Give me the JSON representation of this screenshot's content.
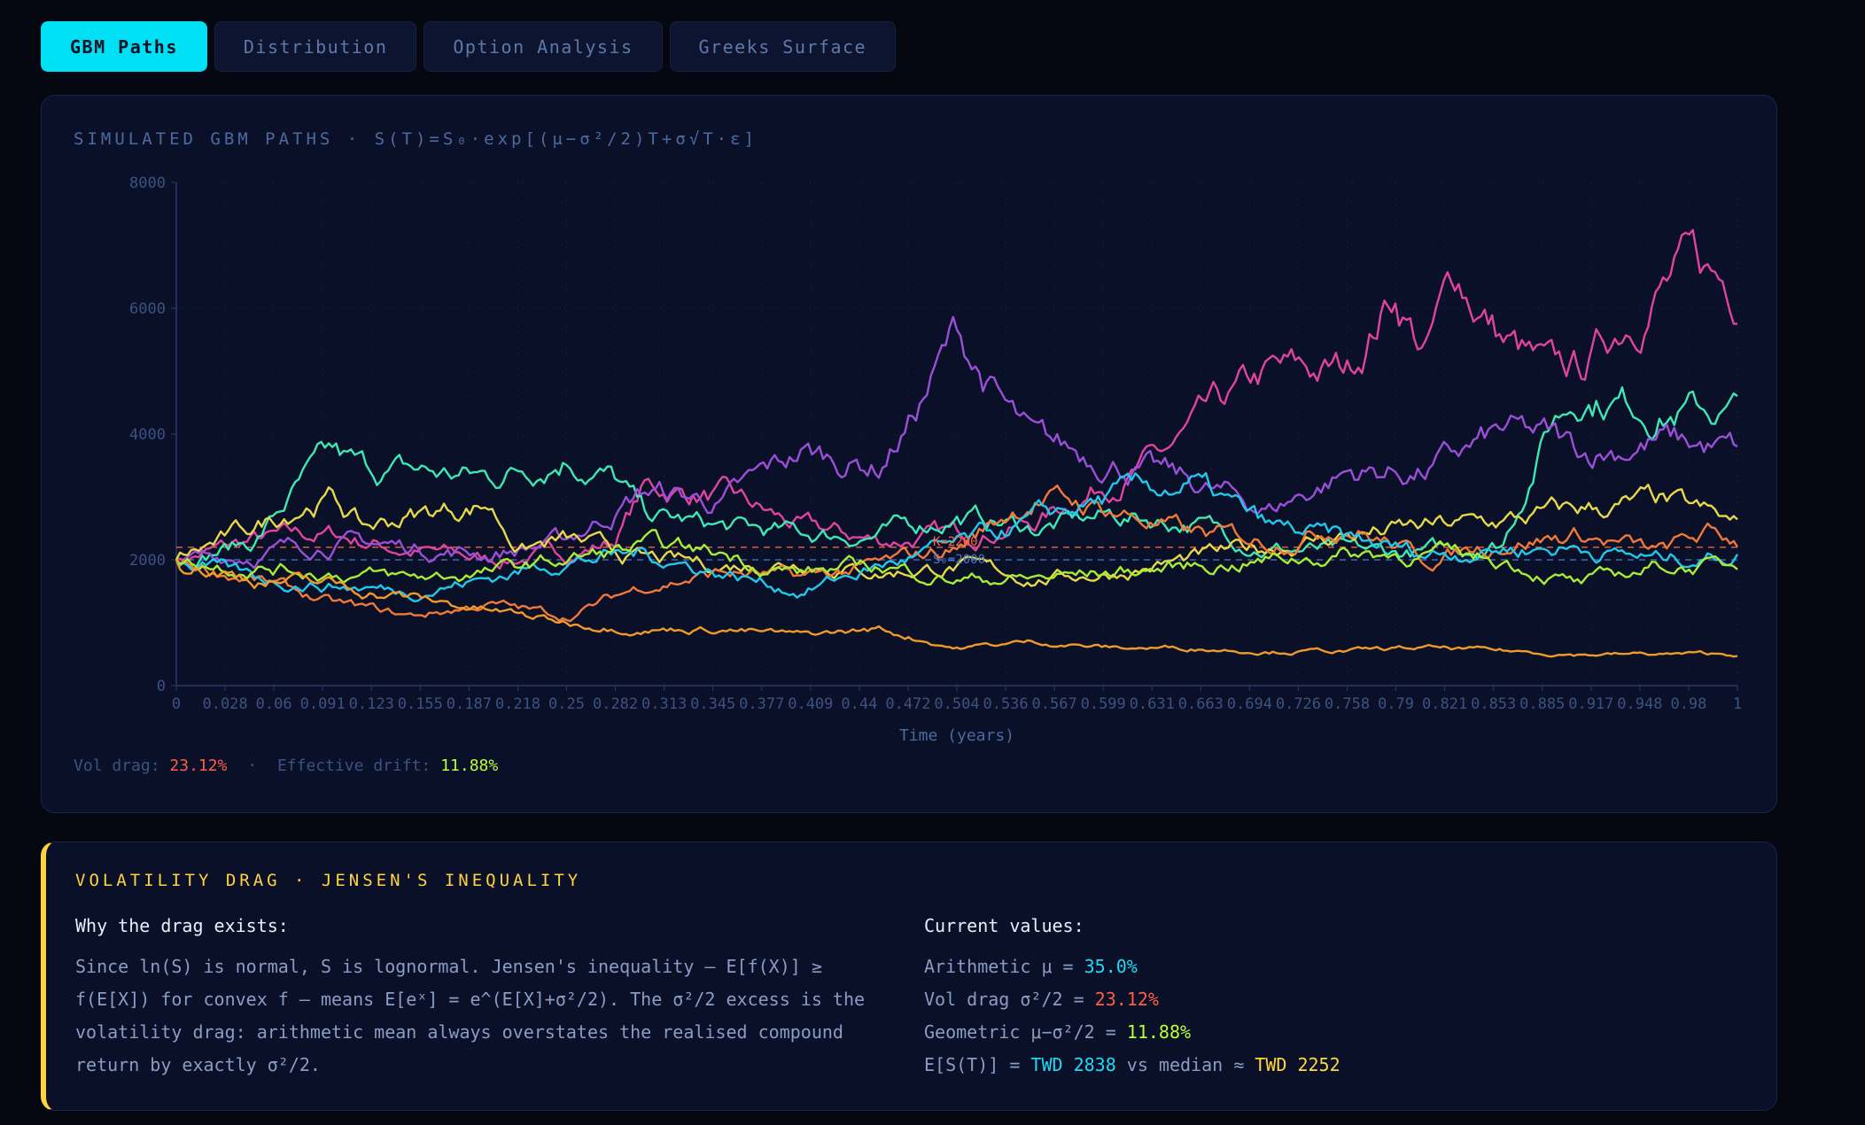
{
  "tabs": [
    {
      "label": "GBM Paths",
      "active": true
    },
    {
      "label": "Distribution"
    },
    {
      "label": "Option Analysis"
    },
    {
      "label": "Greeks Surface"
    }
  ],
  "panel": {
    "title": "SIMULATED GBM PATHS · S(T)=S₀·exp[(μ−σ²/2)T+σ√T·ε]",
    "vol_drag_label": "Vol drag:",
    "vol_drag_value": "23.12%",
    "separator": "·",
    "eff_drift_label": "Effective drift:",
    "eff_drift_value": "11.88%"
  },
  "chart_data": {
    "type": "line",
    "xlabel": "Time (years)",
    "ylabel": "",
    "ylim": [
      0,
      8000
    ],
    "xlim": [
      0,
      1
    ],
    "y_ticks": [
      0,
      2000,
      4000,
      6000,
      8000
    ],
    "x_tick_labels": [
      "0",
      "0.028",
      "0.06",
      "0.091",
      "0.123",
      "0.155",
      "0.187",
      "0.218",
      "0.25",
      "0.282",
      "0.313",
      "0.345",
      "0.377",
      "0.409",
      "0.44",
      "0.472",
      "0.504",
      "0.536",
      "0.567",
      "0.599",
      "0.631",
      "0.663",
      "0.694",
      "0.726",
      "0.758",
      "0.79",
      "0.821",
      "0.853",
      "0.885",
      "0.917",
      "0.948",
      "0.98",
      "1"
    ],
    "grid": true,
    "reference_lines": [
      {
        "label": "K=2200",
        "y": 2200,
        "color": "#ff6a45"
      },
      {
        "label": "S₀=2000",
        "y": 2000,
        "color": "#4a78c8"
      }
    ],
    "series": [
      {
        "color": "#e0449e",
        "x": [
          0,
          0.05,
          0.1,
          0.15,
          0.2,
          0.25,
          0.28,
          0.3,
          0.35,
          0.4,
          0.45,
          0.5,
          0.55,
          0.6,
          0.63,
          0.66,
          0.7,
          0.75,
          0.78,
          0.8,
          0.82,
          0.85,
          0.88,
          0.9,
          0.93,
          0.95,
          0.97,
          1
        ],
        "values": [
          2000,
          2300,
          2400,
          2150,
          2000,
          2100,
          2300,
          3150,
          3000,
          2500,
          2300,
          2400,
          2600,
          3300,
          3600,
          4200,
          4900,
          5000,
          6300,
          5300,
          6500,
          5500,
          4900,
          5000,
          5900,
          6400,
          6600,
          6300
        ]
      },
      {
        "color": "#3ee8b4",
        "x": [
          0,
          0.05,
          0.08,
          0.1,
          0.12,
          0.15,
          0.2,
          0.25,
          0.28,
          0.3,
          0.35,
          0.4,
          0.45,
          0.5,
          0.55,
          0.6,
          0.65,
          0.7,
          0.75,
          0.8,
          0.85,
          0.88,
          0.9,
          0.95,
          1
        ],
        "values": [
          2000,
          2300,
          3200,
          3600,
          3400,
          3400,
          3300,
          3700,
          3300,
          2700,
          2500,
          2400,
          2400,
          2700,
          2500,
          2700,
          2600,
          2200,
          2100,
          2100,
          2300,
          4200,
          4700,
          4400,
          4350
        ]
      },
      {
        "color": "#9b4fd6",
        "x": [
          0,
          0.05,
          0.1,
          0.15,
          0.2,
          0.25,
          0.3,
          0.35,
          0.4,
          0.45,
          0.47,
          0.5,
          0.53,
          0.55,
          0.6,
          0.65,
          0.7,
          0.75,
          0.8,
          0.85,
          0.88,
          0.9,
          0.95,
          1
        ],
        "values": [
          2000,
          2100,
          2300,
          2200,
          2100,
          2300,
          3100,
          2900,
          3700,
          3500,
          4200,
          5600,
          4400,
          3800,
          3600,
          3200,
          2800,
          3400,
          3400,
          4000,
          3900,
          3700,
          3900,
          3700
        ]
      },
      {
        "color": "#e6d84a",
        "x": [
          0,
          0.05,
          0.08,
          0.1,
          0.12,
          0.15,
          0.2,
          0.22,
          0.25,
          0.3,
          0.35,
          0.4,
          0.45,
          0.5,
          0.55,
          0.6,
          0.65,
          0.7,
          0.75,
          0.8,
          0.85,
          0.9,
          0.95,
          0.98,
          1
        ],
        "values": [
          2000,
          2500,
          2900,
          3000,
          2500,
          2700,
          2900,
          2200,
          2300,
          2000,
          1900,
          2000,
          1800,
          1900,
          1700,
          1800,
          2000,
          2200,
          2400,
          2500,
          2600,
          2800,
          2900,
          2700,
          2500
        ]
      },
      {
        "color": "#f07838",
        "x": [
          0,
          0.05,
          0.1,
          0.15,
          0.2,
          0.25,
          0.3,
          0.35,
          0.4,
          0.45,
          0.5,
          0.53,
          0.55,
          0.6,
          0.65,
          0.7,
          0.75,
          0.8,
          0.85,
          0.9,
          0.95,
          0.98,
          1
        ],
        "values": [
          2000,
          1700,
          1300,
          1100,
          1300,
          1100,
          1600,
          1800,
          1700,
          1900,
          2200,
          2700,
          3000,
          2800,
          2400,
          2300,
          2600,
          2000,
          2300,
          2400,
          2100,
          2400,
          2300
        ]
      },
      {
        "color": "#22c8ea",
        "x": [
          0,
          0.05,
          0.1,
          0.15,
          0.2,
          0.25,
          0.3,
          0.35,
          0.4,
          0.45,
          0.5,
          0.55,
          0.6,
          0.65,
          0.7,
          0.75,
          0.8,
          0.85,
          0.9,
          0.95,
          1
        ],
        "values": [
          2000,
          1700,
          1600,
          1500,
          1700,
          2000,
          2100,
          1800,
          1500,
          1900,
          2200,
          2600,
          3000,
          3200,
          2500,
          2300,
          2100,
          2200,
          2200,
          2000,
          2100
        ]
      },
      {
        "color": "#a8ec38",
        "x": [
          0,
          0.05,
          0.1,
          0.15,
          0.2,
          0.25,
          0.3,
          0.35,
          0.4,
          0.45,
          0.5,
          0.55,
          0.6,
          0.65,
          0.7,
          0.75,
          0.8,
          0.85,
          0.9,
          0.95,
          1
        ],
        "values": [
          2000,
          1900,
          1800,
          1700,
          1800,
          2000,
          2200,
          2100,
          1800,
          1900,
          1700,
          1700,
          1800,
          1900,
          2000,
          2100,
          2100,
          2000,
          1600,
          1900,
          1900
        ]
      },
      {
        "color": "#f09a2a",
        "x": [
          0,
          0.05,
          0.1,
          0.15,
          0.2,
          0.25,
          0.3,
          0.35,
          0.4,
          0.45,
          0.5,
          0.55,
          0.6,
          0.65,
          0.7,
          0.75,
          0.8,
          0.85,
          0.9,
          0.95,
          1
        ],
        "values": [
          2000,
          1700,
          1600,
          1400,
          1200,
          1000,
          900,
          900,
          800,
          900,
          600,
          700,
          600,
          600,
          550,
          550,
          600,
          550,
          500,
          500,
          500
        ]
      }
    ]
  },
  "info": {
    "title": "VOLATILITY DRAG · JENSEN'S INEQUALITY",
    "left_heading": "Why the drag exists:",
    "paragraph": "Since ln(S) is normal, S is lognormal. Jensen's inequality — E[f(X)] ≥ f(E[X]) for convex f — means E[eˣ] = e^(E[X]+σ²/2). The σ²/2 excess is the volatility drag: arithmetic mean always overstates the realised compound return by exactly σ²/2.",
    "right_heading": "Current values:",
    "arith_label": "Arithmetic μ = ",
    "arith_value": "35.0%",
    "drag_label": "Vol drag σ²/2 = ",
    "drag_value": "23.12%",
    "geo_label": "Geometric μ−σ²/2 = ",
    "geo_value": "11.88%",
    "est_label": "E[S(T)] = ",
    "est_value": "TWD 2838",
    "vs_label": " vs median ≈ ",
    "median_value": "TWD 2252"
  }
}
